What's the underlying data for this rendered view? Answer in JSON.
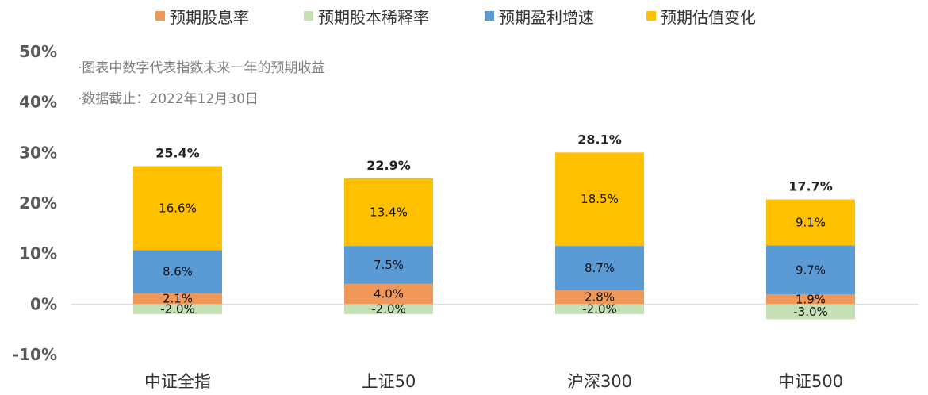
{
  "chart_data": {
    "type": "bar",
    "stacked": true,
    "categories": [
      "中证全指",
      "上证50",
      "沪深300",
      "中证500"
    ],
    "series": [
      {
        "name": "预期股息率",
        "color": "#F0975A",
        "values": [
          2.1,
          4.0,
          2.8,
          1.9
        ],
        "labels": [
          "2.1%",
          "4.0%",
          "2.8%",
          "1.9%"
        ]
      },
      {
        "name": "预期股本稀释率",
        "color": "#C5E0B4",
        "values": [
          -2.0,
          -2.0,
          -2.0,
          -3.0
        ],
        "labels": [
          "-2.0%",
          "-2.0%",
          "-2.0%",
          "-3.0%"
        ]
      },
      {
        "name": "预期盈利增速",
        "color": "#5B9BD5",
        "values": [
          8.6,
          7.5,
          8.7,
          9.7
        ],
        "labels": [
          "8.6%",
          "7.5%",
          "8.7%",
          "9.7%"
        ]
      },
      {
        "name": "预期估值变化",
        "color": "#FFC000",
        "values": [
          16.6,
          13.4,
          18.5,
          9.1
        ],
        "labels": [
          "16.6%",
          "13.4%",
          "18.5%",
          "9.1%"
        ]
      }
    ],
    "totals": [
      25.4,
      22.9,
      28.1,
      17.7
    ],
    "total_labels": [
      "25.4%",
      "22.9%",
      "28.1%",
      "17.7%"
    ],
    "ylim": [
      -10,
      50
    ],
    "yticks": [
      50,
      40,
      30,
      20,
      10,
      0,
      -10
    ],
    "ytick_labels": [
      "50%",
      "40%",
      "30%",
      "20%",
      "10%",
      "0%",
      "-10%"
    ],
    "legend_position": "top",
    "grid": false,
    "annotations": [
      "·图表中数字代表指数未来一年的预期收益",
      "·数据截止：2022年12月30日"
    ]
  }
}
